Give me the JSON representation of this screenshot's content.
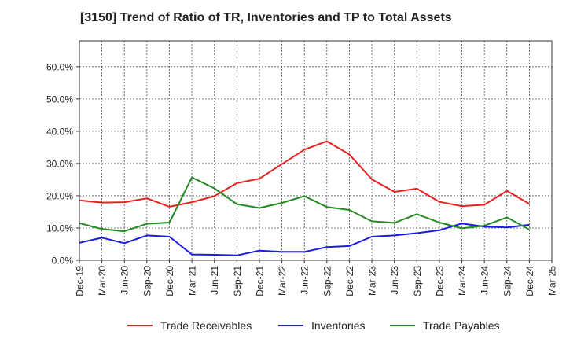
{
  "chart_data": {
    "type": "line",
    "title": "[3150]  Trend of Ratio of TR, Inventories and TP to Total Assets",
    "xlabel": "",
    "ylabel": "",
    "ylim": [
      0,
      0.68
    ],
    "ytick_values": [
      0,
      0.1,
      0.2,
      0.3,
      0.4,
      0.5,
      0.6
    ],
    "ytick_labels": [
      "0.0%",
      "10.0%",
      "20.0%",
      "30.0%",
      "40.0%",
      "50.0%",
      "60.0%"
    ],
    "categories": [
      "Dec-19",
      "Mar-20",
      "Jun-20",
      "Sep-20",
      "Dec-20",
      "Mar-21",
      "Jun-21",
      "Sep-21",
      "Dec-21",
      "Mar-22",
      "Jun-22",
      "Sep-22",
      "Dec-22",
      "Mar-23",
      "Jun-23",
      "Sep-23",
      "Dec-23",
      "Mar-24",
      "Jun-24",
      "Sep-24",
      "Dec-24",
      "Mar-25"
    ],
    "grid": true,
    "legend_position": "bottom",
    "series": [
      {
        "name": "Trade Receivables",
        "color": "#e8201e",
        "values": [
          0.186,
          0.179,
          0.18,
          0.192,
          0.166,
          0.18,
          0.199,
          0.239,
          0.253,
          0.298,
          0.343,
          0.369,
          0.328,
          0.251,
          0.212,
          0.222,
          0.181,
          0.168,
          0.172,
          0.215,
          0.175,
          null
        ]
      },
      {
        "name": "Inventories",
        "color": "#1a1ae6",
        "values": [
          0.054,
          0.07,
          0.053,
          0.077,
          0.073,
          0.018,
          0.017,
          0.015,
          0.03,
          0.026,
          0.026,
          0.041,
          0.044,
          0.073,
          0.077,
          0.084,
          0.093,
          0.114,
          0.104,
          0.102,
          0.11,
          null
        ]
      },
      {
        "name": "Trade Payables",
        "color": "#238b23",
        "values": [
          0.115,
          0.097,
          0.09,
          0.113,
          0.117,
          0.257,
          0.223,
          0.174,
          0.162,
          0.178,
          0.199,
          0.165,
          0.156,
          0.121,
          0.116,
          0.143,
          0.117,
          0.099,
          0.107,
          0.133,
          0.095,
          null
        ]
      }
    ]
  }
}
